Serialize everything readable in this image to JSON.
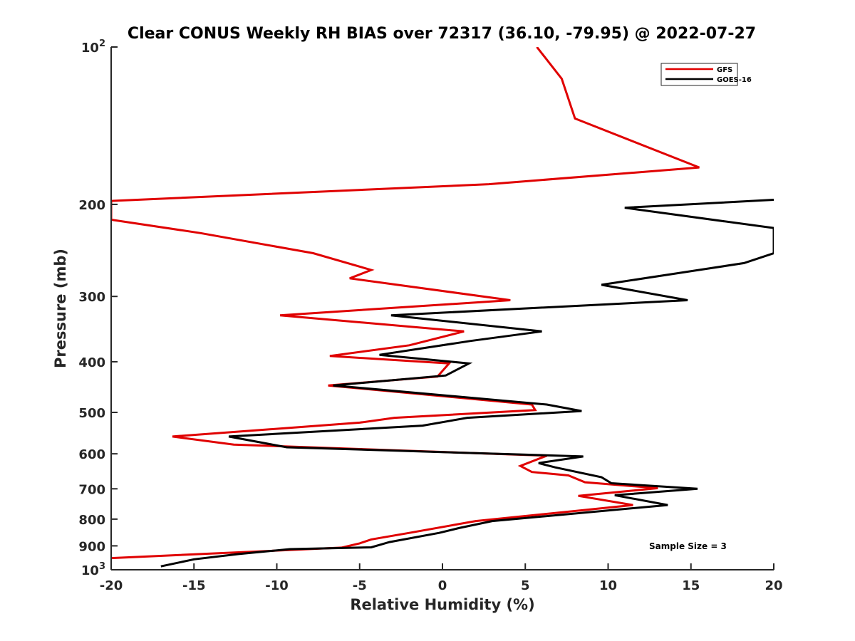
{
  "chart_data": {
    "type": "line",
    "title": "Clear CONUS Weekly RH BIAS over 72317 (36.10, -79.95) @ 2022-07-27",
    "xlabel": "Relative Humidity (%)",
    "ylabel": "Pressure (mb)",
    "xlim": [
      -20,
      20
    ],
    "ylim": [
      100,
      1000
    ],
    "y_scale": "log",
    "y_reversed": true,
    "x_ticks": [
      -20,
      -15,
      -10,
      -5,
      0,
      5,
      10,
      15,
      20
    ],
    "y_ticks": [
      {
        "value": 100,
        "base": "10",
        "exp": "2"
      },
      {
        "value": 200,
        "label": "200"
      },
      {
        "value": 300,
        "label": "300"
      },
      {
        "value": 400,
        "label": "400"
      },
      {
        "value": 500,
        "label": "500"
      },
      {
        "value": 600,
        "label": "600"
      },
      {
        "value": 700,
        "label": "700"
      },
      {
        "value": 800,
        "label": "800"
      },
      {
        "value": 900,
        "label": "900"
      },
      {
        "value": 1000,
        "base": "10",
        "exp": "3"
      }
    ],
    "grid": false,
    "legend_position": "top-right",
    "series": [
      {
        "name": "GFS",
        "color": "#e00000",
        "points": [
          [
            5.7,
            100
          ],
          [
            7.2,
            115
          ],
          [
            8.0,
            137
          ],
          [
            15.5,
            170
          ],
          [
            2.8,
            183
          ],
          [
            -20.0,
            197
          ],
          [
            -20.0,
            214
          ],
          [
            -14.6,
            227
          ],
          [
            -7.8,
            248
          ],
          [
            -4.3,
            267
          ],
          [
            -5.6,
            277
          ],
          [
            4.1,
            305
          ],
          [
            -9.8,
            326
          ],
          [
            1.3,
            350
          ],
          [
            -2.0,
            372
          ],
          [
            -6.8,
            390
          ],
          [
            0.4,
            403
          ],
          [
            -0.3,
            427
          ],
          [
            -6.9,
            444
          ],
          [
            5.4,
            483
          ],
          [
            5.6,
            495
          ],
          [
            -2.9,
            512
          ],
          [
            -5.0,
            523
          ],
          [
            -16.3,
            556
          ],
          [
            -12.6,
            576
          ],
          [
            6.3,
            605
          ],
          [
            4.7,
            633
          ],
          [
            5.4,
            650
          ],
          [
            7.6,
            660
          ],
          [
            8.6,
            680
          ],
          [
            13.0,
            698
          ],
          [
            8.2,
            722
          ],
          [
            11.5,
            752
          ],
          [
            8.3,
            770
          ],
          [
            2.0,
            807
          ],
          [
            -2.0,
            850
          ],
          [
            -4.3,
            875
          ],
          [
            -5.0,
            890
          ],
          [
            -6.1,
            907
          ],
          [
            -20.0,
            950
          ]
        ]
      },
      {
        "name": "GOES-16",
        "color": "#000000",
        "points": [
          [
            20.0,
            196
          ],
          [
            11.0,
            203
          ],
          [
            20.0,
            222
          ],
          [
            20.0,
            248
          ],
          [
            18.2,
            259
          ],
          [
            9.6,
            285
          ],
          [
            14.8,
            305
          ],
          [
            -3.1,
            326
          ],
          [
            6.0,
            350
          ],
          [
            1.7,
            365
          ],
          [
            -3.8,
            388
          ],
          [
            1.6,
            403
          ],
          [
            0.2,
            425
          ],
          [
            -6.6,
            444
          ],
          [
            6.3,
            483
          ],
          [
            8.4,
            497
          ],
          [
            1.5,
            512
          ],
          [
            -1.2,
            530
          ],
          [
            -12.9,
            556
          ],
          [
            -9.4,
            583
          ],
          [
            8.5,
            607
          ],
          [
            5.8,
            625
          ],
          [
            6.8,
            637
          ],
          [
            9.6,
            665
          ],
          [
            10.2,
            683
          ],
          [
            15.4,
            700
          ],
          [
            10.4,
            720
          ],
          [
            13.6,
            752
          ],
          [
            3.0,
            807
          ],
          [
            1.0,
            832
          ],
          [
            -0.2,
            850
          ],
          [
            -3.2,
            885
          ],
          [
            -4.3,
            906
          ],
          [
            -9.2,
            913
          ],
          [
            -12.3,
            933
          ],
          [
            -15.0,
            955
          ],
          [
            -17.0,
            985
          ]
        ]
      }
    ],
    "annotations": [
      "Sample Size = 3"
    ]
  }
}
